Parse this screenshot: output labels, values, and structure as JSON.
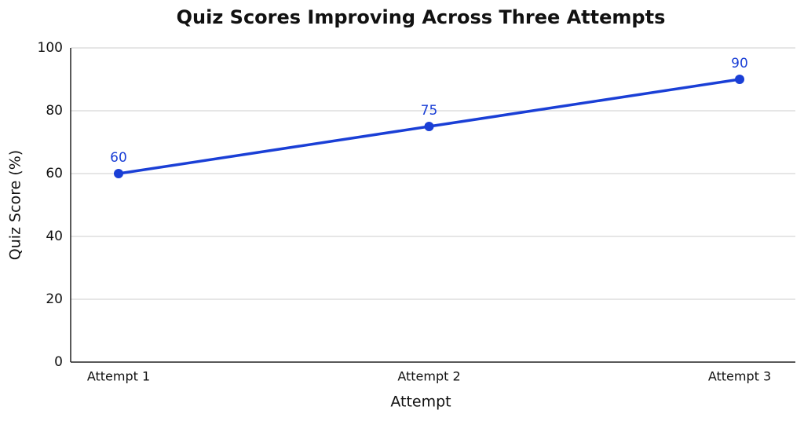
{
  "chart_data": {
    "type": "line",
    "title": "Quiz Scores Improving Across Three Attempts",
    "x_label": "Attempt",
    "y_label": "Quiz Score (%)",
    "categories": [
      "Attempt 1",
      "Attempt 2",
      "Attempt 3"
    ],
    "values": [
      60,
      75,
      90
    ],
    "color": "#1a3fd6",
    "ylim": [
      0,
      100
    ],
    "yticks": [
      0,
      20,
      40,
      60,
      80,
      100
    ],
    "grid": true
  }
}
